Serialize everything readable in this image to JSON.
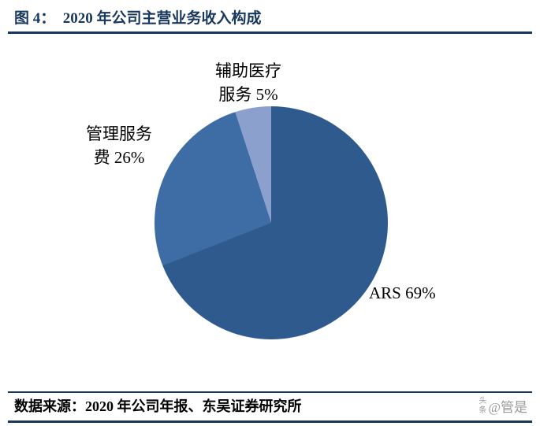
{
  "header": {
    "title": "图 4：  2020 年公司主营业务收入构成"
  },
  "chart_data": {
    "type": "pie",
    "title": "2020 年公司主营业务收入构成",
    "start_angle_deg": 0,
    "direction": "clockwise",
    "legend_position": "none",
    "labels_position": "outside",
    "slices": [
      {
        "label": "ARS",
        "value": 69,
        "unit": "%",
        "color": "#2E5A8D",
        "label_lines": [
          "ARS 69%"
        ]
      },
      {
        "label": "管理服务费",
        "value": 26,
        "unit": "%",
        "color": "#3E6CA4",
        "label_lines": [
          "管理服务",
          "费 26%"
        ]
      },
      {
        "label": "辅助医疗服务",
        "value": 5,
        "unit": "%",
        "color": "#8CA0CE",
        "label_lines": [
          "辅助医疗",
          "服务 5%"
        ]
      }
    ]
  },
  "footer": {
    "source": "数据来源：2020 年公司年报、东吴证券研究所"
  },
  "watermark": {
    "brand_char1": "头",
    "brand_char2": "条",
    "handle": "@管是"
  },
  "colors": {
    "accent": "#17375E",
    "text": "#000000",
    "watermark": "#9a9a9a"
  }
}
